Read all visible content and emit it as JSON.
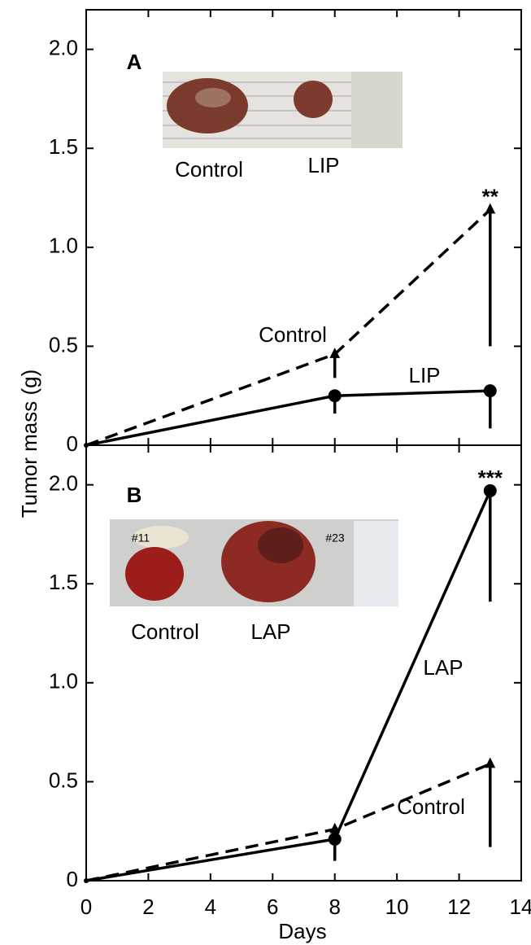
{
  "chart_data": [
    {
      "type": "line",
      "panel": "A",
      "ylabel": "Tumor mass (g)",
      "xlim": [
        0,
        14
      ],
      "xticks": [
        0,
        2,
        4,
        6,
        8,
        10,
        12,
        14
      ],
      "ylim": [
        0,
        2.2
      ],
      "yticks": [
        0,
        0.5,
        {
          "value": 1,
          "label": "1.0"
        },
        {
          "value": 1.5,
          "label": "1.5"
        },
        {
          "value": 2,
          "label": "2.0"
        }
      ],
      "significance": "**",
      "inset_labels": [
        "Control",
        "LIP"
      ],
      "series": [
        {
          "name": "Control",
          "color": "#000000",
          "dashed": true,
          "marker": "triangle",
          "x": [
            0,
            8,
            13
          ],
          "values": [
            0,
            0.46,
            1.19
          ],
          "errors": [
            0,
            0.12,
            0.69
          ]
        },
        {
          "name": "LIP",
          "color": "#000000",
          "dashed": false,
          "marker": "circle",
          "x": [
            0,
            8,
            13
          ],
          "values": [
            0,
            0.25,
            0.275
          ],
          "errors": [
            0,
            0.09,
            0.19
          ]
        }
      ]
    },
    {
      "type": "line",
      "panel": "B",
      "xlabel": "Days",
      "xlim": [
        0,
        14
      ],
      "xticks": [
        0,
        2,
        4,
        6,
        8,
        10,
        12,
        14
      ],
      "ylim": [
        0,
        2.2
      ],
      "yticks": [
        0,
        0.5,
        {
          "value": 1,
          "label": "1.0"
        },
        {
          "value": 1.5,
          "label": "1.5"
        },
        {
          "value": 2,
          "label": "2.0"
        }
      ],
      "significance": "***",
      "inset_labels": [
        "Control",
        "LAP"
      ],
      "photo_labels": [
        "#11",
        "#23"
      ],
      "series": [
        {
          "name": "LAP",
          "color": "#000000",
          "dashed": false,
          "marker": "circle",
          "x": [
            0,
            8,
            13
          ],
          "values": [
            0,
            0.21,
            1.97
          ],
          "errors": [
            0,
            0.11,
            0.56
          ]
        },
        {
          "name": "Control",
          "color": "#000000",
          "dashed": true,
          "marker": "triangle",
          "x": [
            0,
            8,
            13
          ],
          "values": [
            0,
            0.26,
            0.59
          ],
          "errors": [
            0,
            0.14,
            0.42
          ]
        }
      ]
    }
  ]
}
